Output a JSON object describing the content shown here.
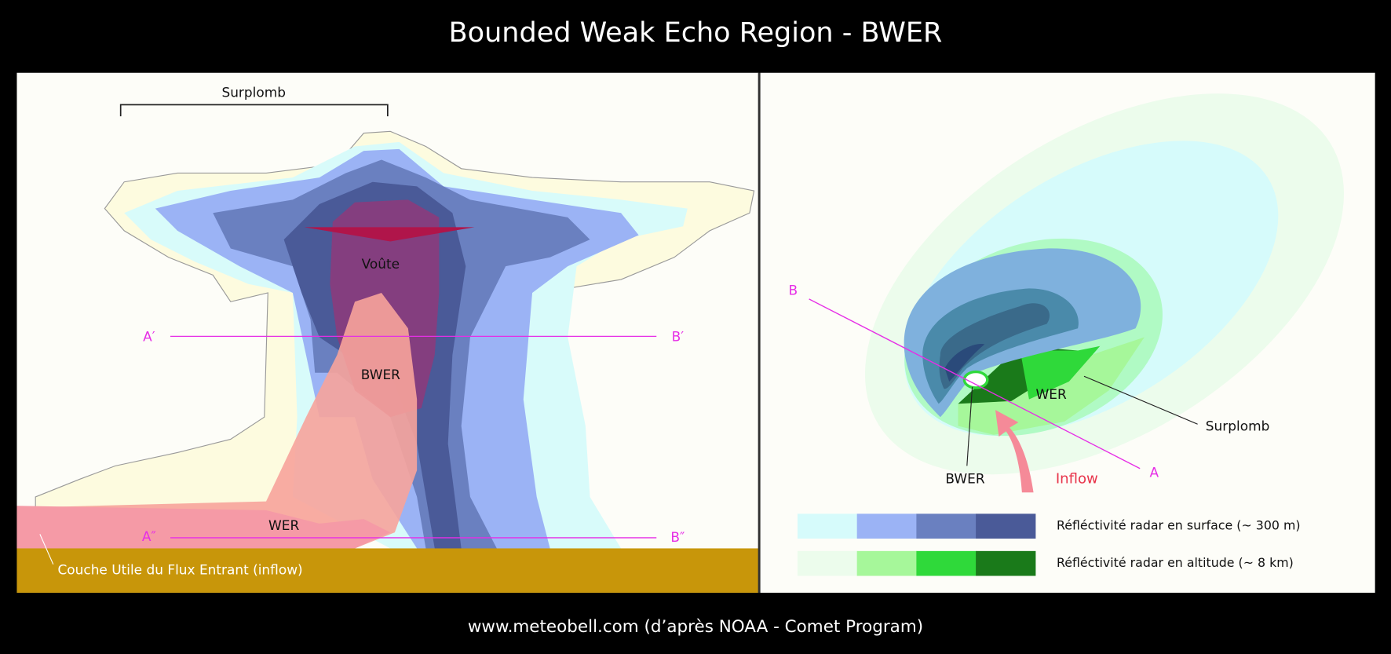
{
  "title": "Bounded Weak Echo Region - BWER",
  "footer": "www.meteobell.com (d’après NOAA - Comet Program)",
  "cross_section": {
    "labels": {
      "overhang": "Surplomb",
      "vault": "Voûte",
      "bwer": "BWER",
      "wer": "WER",
      "inflow_layer": "Couche Utile du Flux Entrant (inflow)"
    },
    "section_lines": [
      {
        "start": "A′",
        "end": "B′"
      },
      {
        "start": "A″",
        "end": "B″"
      }
    ]
  },
  "plan_view": {
    "labels": {
      "wer": "WER",
      "overhang": "Surplomb",
      "bwer": "BWER",
      "inflow": "Inflow"
    },
    "section_line": {
      "start": "B",
      "end": "A"
    },
    "legend": [
      {
        "label": "Réfléctivité radar en surface (~ 300 m)",
        "colors": [
          "#d6fbfb",
          "#9bb3f5",
          "#6a80c0",
          "#4a5a98"
        ]
      },
      {
        "label": "Réfléctivité radar en altitude (~ 8 km)",
        "colors": [
          "#ecfcec",
          "#a6f79a",
          "#2fd93a",
          "#1a7a1a"
        ]
      }
    ]
  }
}
